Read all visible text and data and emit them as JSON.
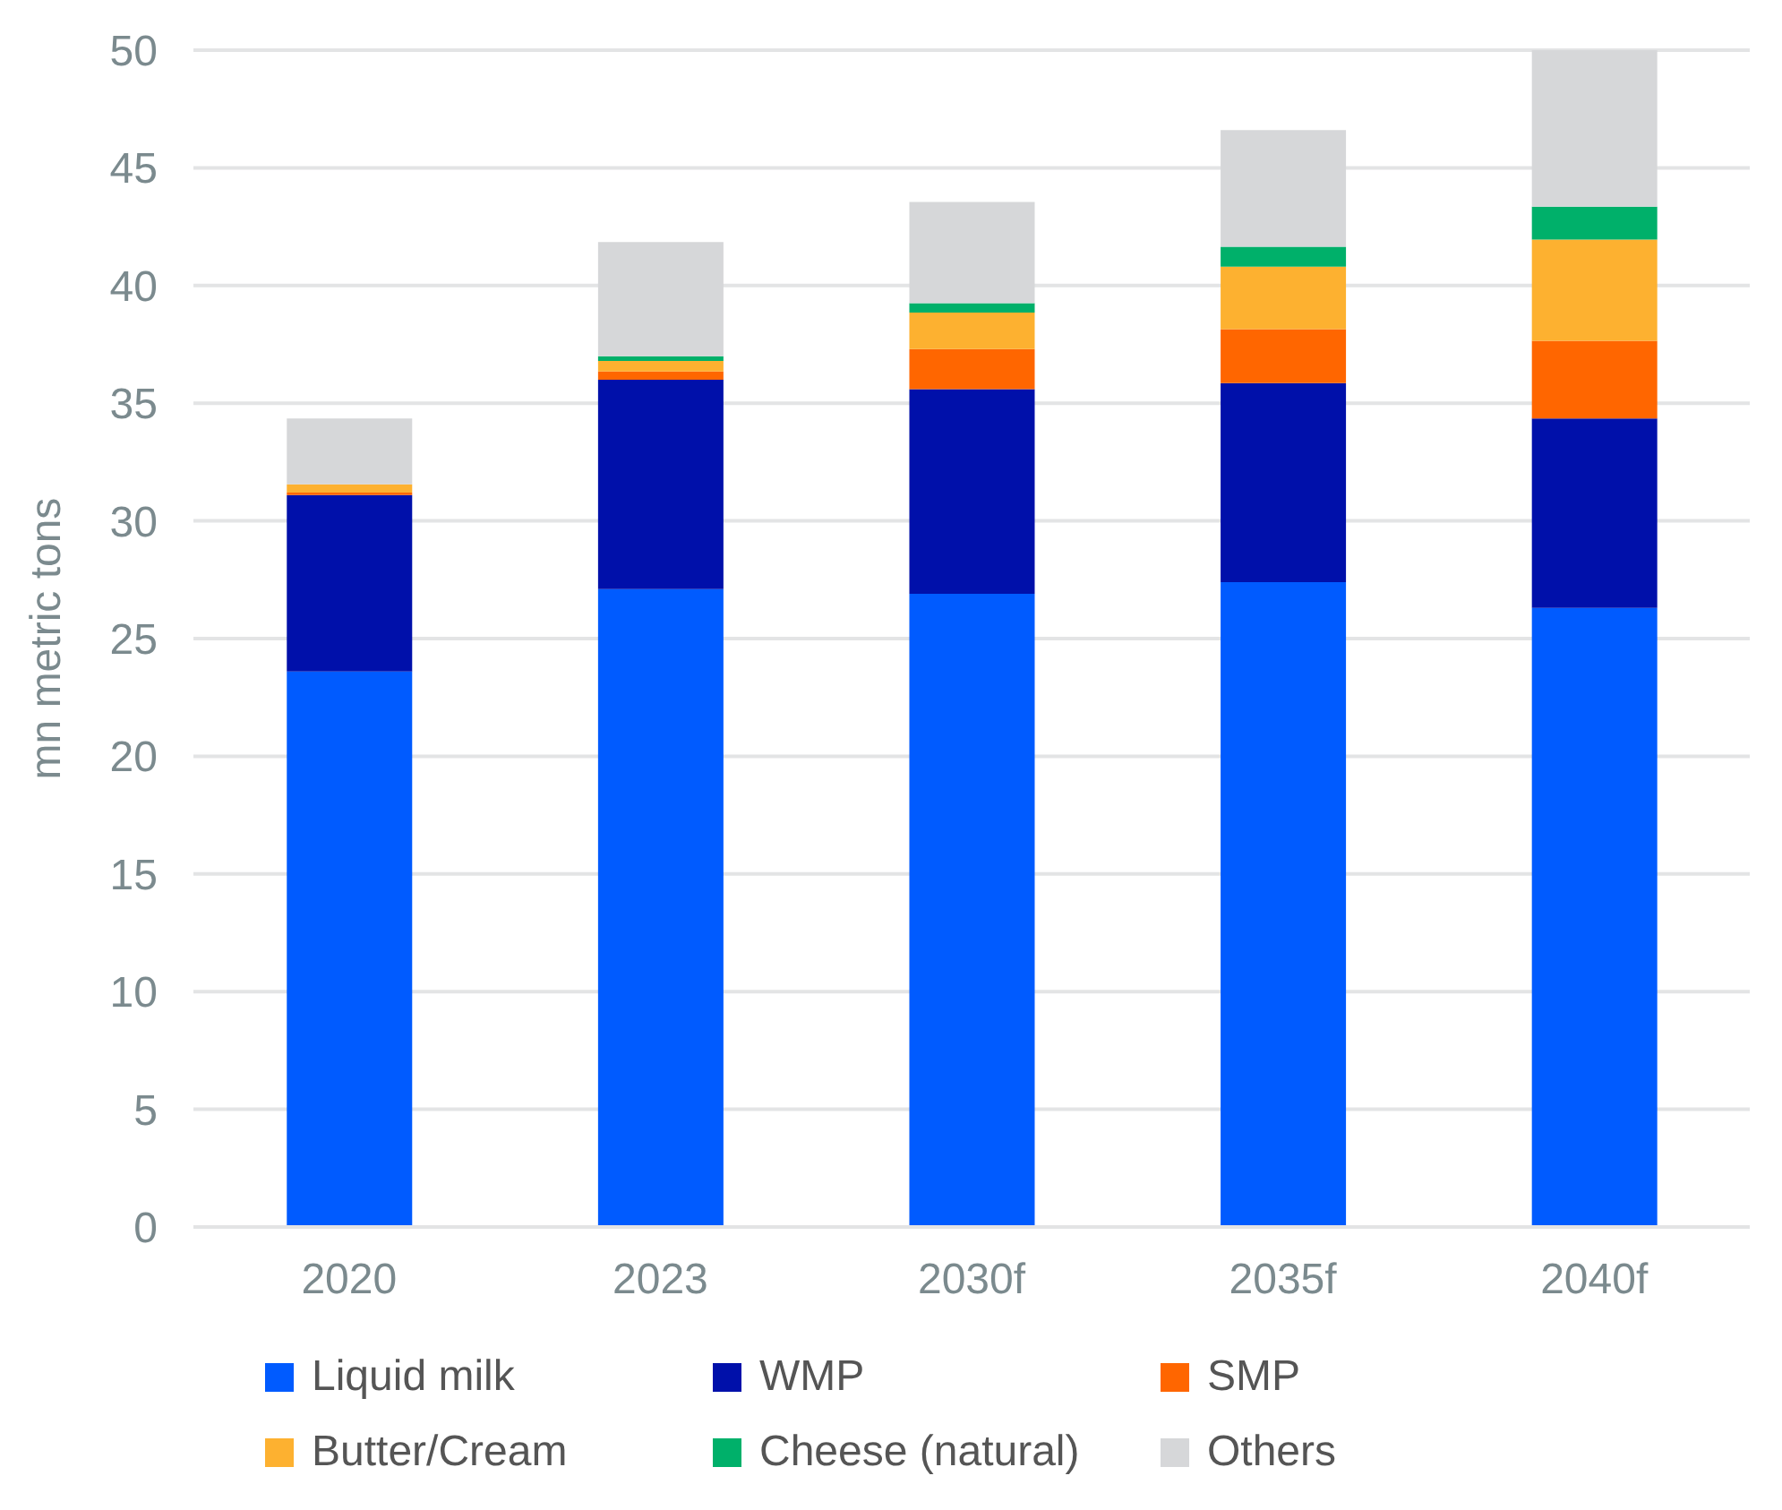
{
  "chart_data": {
    "type": "bar",
    "stacked": true,
    "ylabel": "mn metric tons",
    "categories": [
      "2020",
      "2023",
      "2030f",
      "2035f",
      "2040f"
    ],
    "series": [
      {
        "name": "Liquid milk",
        "color": "#005bff",
        "values": [
          23.6,
          27.1,
          26.9,
          27.4,
          26.3
        ]
      },
      {
        "name": "WMP",
        "color": "#0010aa",
        "values": [
          7.5,
          8.9,
          8.7,
          8.45,
          8.05
        ]
      },
      {
        "name": "SMP",
        "color": "#ff6600",
        "values": [
          0.1,
          0.35,
          1.7,
          2.3,
          3.3
        ]
      },
      {
        "name": "Butter/Cream",
        "color": "#fdb130",
        "values": [
          0.35,
          0.45,
          1.55,
          2.65,
          4.3
        ]
      },
      {
        "name": "Cheese (natural)",
        "color": "#00b06a",
        "values": [
          0,
          0.2,
          0.4,
          0.85,
          1.4
        ]
      },
      {
        "name": "Others",
        "color": "#d6d7d9",
        "values": [
          2.8,
          4.85,
          4.3,
          4.95,
          6.65
        ]
      }
    ],
    "ylim": [
      0,
      50
    ],
    "yticks": [
      0,
      5,
      10,
      15,
      20,
      25,
      30,
      35,
      40,
      45,
      50
    ],
    "grid": "y",
    "legend": "bottom"
  }
}
